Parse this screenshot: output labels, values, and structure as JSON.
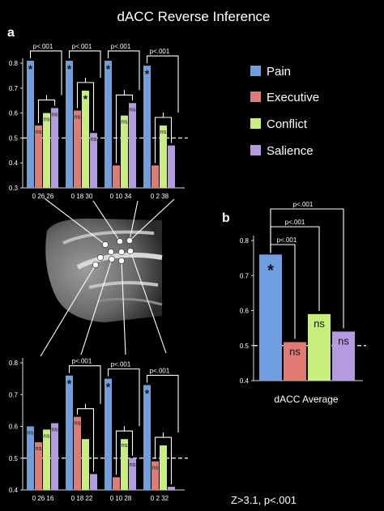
{
  "title": "dACC Reverse Inference",
  "panel_a_label": "a",
  "panel_b_label": "b",
  "footnote": "Z>3.1, p<.001",
  "colors": {
    "Pain": "#6f9fe0",
    "Executive": "#e07a72",
    "Conflict": "#c8ee7c",
    "Salience": "#b49ae0",
    "background": "#000000"
  },
  "legend": [
    {
      "name": "Pain",
      "color": "#6f9fe0"
    },
    {
      "name": "Executive",
      "color": "#e07a72"
    },
    {
      "name": "Conflict",
      "color": "#c8ee7c"
    },
    {
      "name": "Salience",
      "color": "#b49ae0"
    }
  ],
  "chart_data": [
    {
      "type": "bar",
      "panel": "a-top",
      "ylim": [
        0.3,
        0.8
      ],
      "yticks": [
        "0.3",
        "0.4",
        "0.5",
        "0.6",
        "0.7",
        "0.8"
      ],
      "reference_line": 0.5,
      "series_names": [
        "Pain",
        "Executive",
        "Conflict",
        "Salience"
      ],
      "groups": [
        {
          "label": "0 26 26",
          "values": [
            0.81,
            0.55,
            0.6,
            0.62
          ],
          "marks": [
            "*",
            "ns",
            "ns",
            "ns"
          ],
          "bracket_label": "p<.001"
        },
        {
          "label": "0 18 30",
          "values": [
            0.81,
            0.61,
            0.69,
            0.52
          ],
          "marks": [
            "*",
            "ns",
            "*",
            "ns"
          ],
          "bracket_label": "p<.001"
        },
        {
          "label": "0 10 34",
          "values": [
            0.81,
            0.39,
            0.59,
            0.64
          ],
          "marks": [
            "*",
            "",
            "ns",
            "ns"
          ],
          "bracket_label": "p<.001"
        },
        {
          "label": "0 2 38",
          "values": [
            0.79,
            0.39,
            0.55,
            0.47
          ],
          "marks": [
            "*",
            "",
            "ns",
            ""
          ],
          "bracket_label": "p<.001"
        }
      ]
    },
    {
      "type": "bar",
      "panel": "a-bottom",
      "ylim": [
        0.4,
        0.8
      ],
      "yticks": [
        "0.4",
        "0.5",
        "0.6",
        "0.7",
        "0.8"
      ],
      "reference_line": 0.5,
      "series_names": [
        "Pain",
        "Executive",
        "Conflict",
        "Salience"
      ],
      "groups": [
        {
          "label": "0 26 16",
          "values": [
            0.6,
            0.55,
            0.59,
            0.61
          ],
          "marks": [
            "ns",
            "ns",
            "ns",
            "ns"
          ],
          "bracket_label": ""
        },
        {
          "label": "0 18 22",
          "values": [
            0.76,
            0.63,
            0.56,
            0.45
          ],
          "marks": [
            "*",
            "ns",
            "",
            ""
          ],
          "bracket_label": "p<.001"
        },
        {
          "label": "0 10 28",
          "values": [
            0.75,
            0.44,
            0.56,
            0.5
          ],
          "marks": [
            "*",
            "",
            "ns",
            "ns"
          ],
          "bracket_label": "p<.001"
        },
        {
          "label": "0 2 32",
          "values": [
            0.73,
            0.49,
            0.54,
            0.41
          ],
          "marks": [
            "*",
            "ns",
            "",
            ""
          ],
          "bracket_label": "p<.001"
        }
      ]
    },
    {
      "type": "bar",
      "panel": "b",
      "xlabel": "dACC Average",
      "ylim": [
        0.4,
        0.8
      ],
      "yticks": [
        "0.4",
        "0.5",
        "0.6",
        "0.7",
        "0.8"
      ],
      "reference_line": 0.5,
      "categories": [
        "Pain",
        "Executive",
        "Conflict",
        "Salience"
      ],
      "values": [
        0.76,
        0.51,
        0.59,
        0.54
      ],
      "marks": [
        "*",
        "ns",
        "ns",
        "ns"
      ],
      "bracket_labels": [
        "p<.001",
        "p<.001",
        "p<.001"
      ]
    }
  ]
}
